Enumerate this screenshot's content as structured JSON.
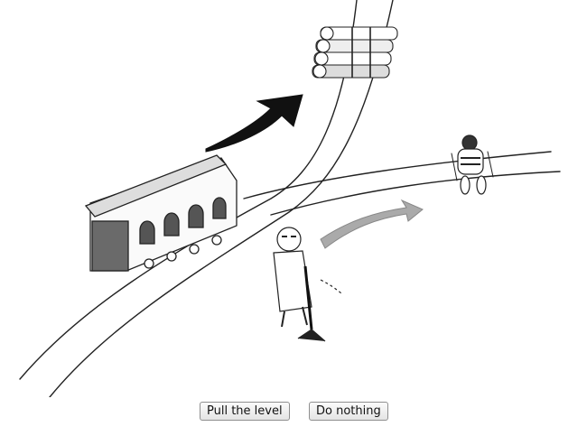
{
  "scene": {
    "description_icon": "trolley-problem-illustration"
  },
  "buttons": {
    "pull_label": "Pull the level",
    "nothing_label": "Do nothing"
  }
}
